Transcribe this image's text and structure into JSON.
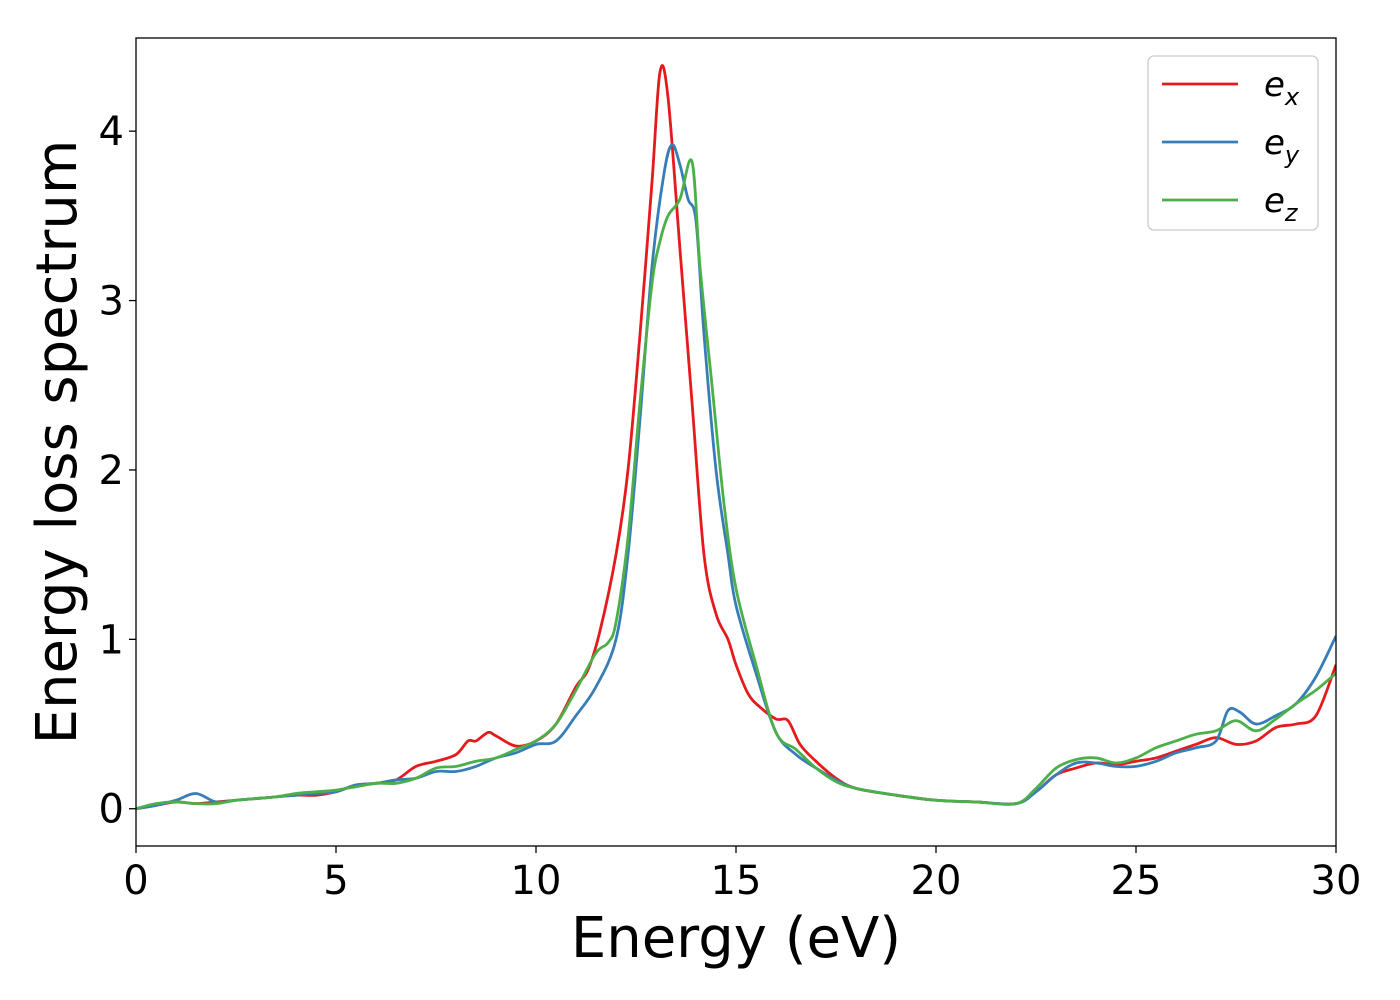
{
  "chart_data": {
    "type": "line",
    "title": "",
    "xlabel": "Energy (eV)",
    "ylabel": "Energy loss spectrum",
    "xlim": [
      0,
      30
    ],
    "ylim": [
      -0.22,
      4.55
    ],
    "xticks": [
      0,
      5,
      10,
      15,
      20,
      25,
      30
    ],
    "yticks": [
      0,
      1,
      2,
      3,
      4
    ],
    "grid": false,
    "legend_position": "top-right",
    "series": [
      {
        "name": "e",
        "subscript": "x",
        "color": "#e41a1c",
        "points": [
          [
            0,
            0
          ],
          [
            0.5,
            0.02
          ],
          [
            1,
            0.04
          ],
          [
            1.5,
            0.03
          ],
          [
            2,
            0.04
          ],
          [
            2.5,
            0.05
          ],
          [
            3,
            0.06
          ],
          [
            3.5,
            0.07
          ],
          [
            4,
            0.08
          ],
          [
            4.5,
            0.08
          ],
          [
            5,
            0.1
          ],
          [
            5.5,
            0.14
          ],
          [
            6,
            0.15
          ],
          [
            6.5,
            0.17
          ],
          [
            7,
            0.25
          ],
          [
            7.5,
            0.28
          ],
          [
            8,
            0.32
          ],
          [
            8.3,
            0.4
          ],
          [
            8.5,
            0.4
          ],
          [
            8.8,
            0.45
          ],
          [
            9,
            0.43
          ],
          [
            9.5,
            0.37
          ],
          [
            10,
            0.4
          ],
          [
            10.5,
            0.5
          ],
          [
            11,
            0.72
          ],
          [
            11.3,
            0.82
          ],
          [
            11.6,
            1.05
          ],
          [
            12,
            1.5
          ],
          [
            12.3,
            2.0
          ],
          [
            12.6,
            2.8
          ],
          [
            12.9,
            3.7
          ],
          [
            13.1,
            4.35
          ],
          [
            13.3,
            4.2
          ],
          [
            13.6,
            3.3
          ],
          [
            13.9,
            2.4
          ],
          [
            14.2,
            1.5
          ],
          [
            14.5,
            1.15
          ],
          [
            14.8,
            1.0
          ],
          [
            15,
            0.85
          ],
          [
            15.3,
            0.68
          ],
          [
            15.6,
            0.6
          ],
          [
            16,
            0.53
          ],
          [
            16.3,
            0.52
          ],
          [
            16.6,
            0.38
          ],
          [
            17,
            0.28
          ],
          [
            17.5,
            0.18
          ],
          [
            18,
            0.12
          ],
          [
            19,
            0.08
          ],
          [
            20,
            0.05
          ],
          [
            21,
            0.04
          ],
          [
            22,
            0.03
          ],
          [
            22.5,
            0.1
          ],
          [
            23,
            0.2
          ],
          [
            23.5,
            0.24
          ],
          [
            24,
            0.27
          ],
          [
            24.5,
            0.26
          ],
          [
            25,
            0.28
          ],
          [
            25.5,
            0.3
          ],
          [
            26,
            0.34
          ],
          [
            26.5,
            0.38
          ],
          [
            27,
            0.42
          ],
          [
            27.5,
            0.38
          ],
          [
            28,
            0.4
          ],
          [
            28.5,
            0.48
          ],
          [
            29,
            0.5
          ],
          [
            29.5,
            0.55
          ],
          [
            30,
            0.85
          ]
        ]
      },
      {
        "name": "e",
        "subscript": "y",
        "color": "#377eb8",
        "points": [
          [
            0,
            0
          ],
          [
            0.5,
            0.02
          ],
          [
            1,
            0.05
          ],
          [
            1.5,
            0.09
          ],
          [
            2,
            0.04
          ],
          [
            2.5,
            0.05
          ],
          [
            3,
            0.06
          ],
          [
            3.5,
            0.07
          ],
          [
            4,
            0.08
          ],
          [
            4.5,
            0.09
          ],
          [
            5,
            0.1
          ],
          [
            5.5,
            0.14
          ],
          [
            6,
            0.15
          ],
          [
            6.5,
            0.17
          ],
          [
            7,
            0.18
          ],
          [
            7.5,
            0.22
          ],
          [
            8,
            0.22
          ],
          [
            8.5,
            0.25
          ],
          [
            9,
            0.3
          ],
          [
            9.5,
            0.33
          ],
          [
            10,
            0.38
          ],
          [
            10.5,
            0.4
          ],
          [
            11,
            0.55
          ],
          [
            11.5,
            0.72
          ],
          [
            12,
            1.0
          ],
          [
            12.3,
            1.5
          ],
          [
            12.6,
            2.3
          ],
          [
            12.9,
            3.2
          ],
          [
            13.2,
            3.75
          ],
          [
            13.4,
            3.92
          ],
          [
            13.6,
            3.8
          ],
          [
            13.8,
            3.6
          ],
          [
            14,
            3.47
          ],
          [
            14.2,
            2.8
          ],
          [
            14.5,
            2.0
          ],
          [
            14.8,
            1.5
          ],
          [
            15,
            1.2
          ],
          [
            15.5,
            0.8
          ],
          [
            16,
            0.45
          ],
          [
            16.5,
            0.32
          ],
          [
            17,
            0.24
          ],
          [
            17.5,
            0.17
          ],
          [
            18,
            0.12
          ],
          [
            19,
            0.08
          ],
          [
            20,
            0.05
          ],
          [
            21,
            0.04
          ],
          [
            22,
            0.03
          ],
          [
            22.5,
            0.1
          ],
          [
            23,
            0.2
          ],
          [
            23.5,
            0.27
          ],
          [
            24,
            0.27
          ],
          [
            24.5,
            0.25
          ],
          [
            25,
            0.25
          ],
          [
            25.5,
            0.28
          ],
          [
            26,
            0.33
          ],
          [
            26.5,
            0.36
          ],
          [
            27,
            0.4
          ],
          [
            27.3,
            0.58
          ],
          [
            27.6,
            0.57
          ],
          [
            28,
            0.5
          ],
          [
            28.5,
            0.55
          ],
          [
            29,
            0.62
          ],
          [
            29.5,
            0.78
          ],
          [
            30,
            1.02
          ]
        ]
      },
      {
        "name": "e",
        "subscript": "z",
        "color": "#4daf4a",
        "points": [
          [
            0,
            0
          ],
          [
            0.5,
            0.03
          ],
          [
            1,
            0.04
          ],
          [
            1.5,
            0.03
          ],
          [
            2,
            0.03
          ],
          [
            2.5,
            0.05
          ],
          [
            3,
            0.06
          ],
          [
            3.5,
            0.07
          ],
          [
            4,
            0.09
          ],
          [
            4.5,
            0.1
          ],
          [
            5,
            0.11
          ],
          [
            5.5,
            0.13
          ],
          [
            6,
            0.15
          ],
          [
            6.5,
            0.15
          ],
          [
            7,
            0.18
          ],
          [
            7.5,
            0.24
          ],
          [
            8,
            0.25
          ],
          [
            8.5,
            0.28
          ],
          [
            9,
            0.3
          ],
          [
            9.5,
            0.35
          ],
          [
            10,
            0.4
          ],
          [
            10.5,
            0.5
          ],
          [
            11,
            0.7
          ],
          [
            11.5,
            0.92
          ],
          [
            11.8,
            0.98
          ],
          [
            12,
            1.1
          ],
          [
            12.3,
            1.6
          ],
          [
            12.6,
            2.4
          ],
          [
            12.9,
            3.1
          ],
          [
            13.1,
            3.35
          ],
          [
            13.3,
            3.5
          ],
          [
            13.6,
            3.6
          ],
          [
            13.9,
            3.82
          ],
          [
            14.1,
            3.2
          ],
          [
            14.4,
            2.5
          ],
          [
            14.7,
            1.8
          ],
          [
            15,
            1.3
          ],
          [
            15.5,
            0.85
          ],
          [
            16,
            0.45
          ],
          [
            16.5,
            0.35
          ],
          [
            17,
            0.24
          ],
          [
            17.5,
            0.16
          ],
          [
            18,
            0.12
          ],
          [
            19,
            0.08
          ],
          [
            20,
            0.05
          ],
          [
            21,
            0.04
          ],
          [
            22,
            0.03
          ],
          [
            22.5,
            0.12
          ],
          [
            23,
            0.24
          ],
          [
            23.5,
            0.29
          ],
          [
            24,
            0.3
          ],
          [
            24.5,
            0.27
          ],
          [
            25,
            0.3
          ],
          [
            25.5,
            0.36
          ],
          [
            26,
            0.4
          ],
          [
            26.5,
            0.44
          ],
          [
            27,
            0.46
          ],
          [
            27.5,
            0.52
          ],
          [
            28,
            0.46
          ],
          [
            28.5,
            0.53
          ],
          [
            29,
            0.62
          ],
          [
            29.5,
            0.7
          ],
          [
            30,
            0.8
          ]
        ]
      }
    ]
  }
}
